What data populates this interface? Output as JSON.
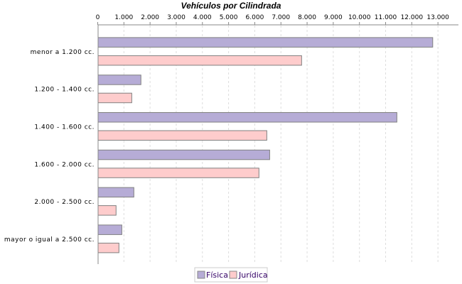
{
  "chart_data": {
    "type": "bar",
    "orientation": "horizontal",
    "title": "Vehículos por Cilindrada",
    "xlabel": "",
    "ylabel": "",
    "categories": [
      "menor a 1.200 cc.",
      "1.200 - 1.400 cc.",
      "1.400 - 1.600 cc.",
      "1.600 - 2.000 cc.",
      "2.000 - 2.500 cc.",
      "mayor o igual a 2.500 cc."
    ],
    "series": [
      {
        "name": "Física",
        "color": "#b6acd6",
        "values": [
          12800,
          1650,
          11430,
          6570,
          1380,
          920
        ]
      },
      {
        "name": "Jurídica",
        "color": "#fecccc",
        "values": [
          7790,
          1300,
          6460,
          6160,
          700,
          810
        ]
      }
    ],
    "value_axis": {
      "position": "top",
      "range": [
        0,
        13800
      ],
      "ticks": [
        0,
        1000,
        2000,
        3000,
        4000,
        5000,
        6000,
        7000,
        8000,
        9000,
        10000,
        11000,
        12000,
        13000
      ],
      "tick_labels": [
        "0",
        "1.000",
        "2.000",
        "3.000",
        "4.000",
        "5.000",
        "6.000",
        "7.000",
        "8.000",
        "9.000",
        "10.000",
        "11.000",
        "12.000",
        "13.000"
      ]
    },
    "grid": true,
    "legend": "bottom"
  }
}
